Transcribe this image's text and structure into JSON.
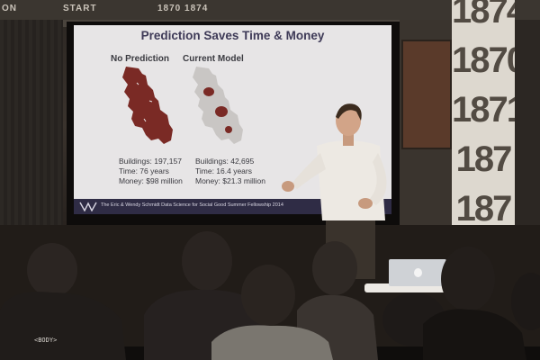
{
  "header_strip": {
    "left_text": "ON",
    "mid_text_1": "START",
    "mid_text_2": "1870 1874"
  },
  "slide": {
    "title": "Prediction Saves Time & Money",
    "left": {
      "heading": "No Prediction",
      "buildings": "Buildings: 197,157",
      "time": "Time: 76 years",
      "money": "Money: $98 million",
      "map_color": "#7a2a25"
    },
    "right": {
      "heading": "Current Model",
      "buildings": "Buildings: 42,695",
      "time": "Time: 16.4 years",
      "money": "Money: $21.3 million",
      "map_color": "#c9c6c4",
      "highlight_color": "#7a2a25"
    },
    "footer_text": "The Eric & Wendy Schmidt Data Science for Social Good Summer Fellowship 2014",
    "footer_color": "#2f2c45"
  },
  "pillar": {
    "numbers": [
      "1874",
      "1870",
      "1871",
      "187",
      "187"
    ]
  },
  "shirt_text": "<BODY>"
}
